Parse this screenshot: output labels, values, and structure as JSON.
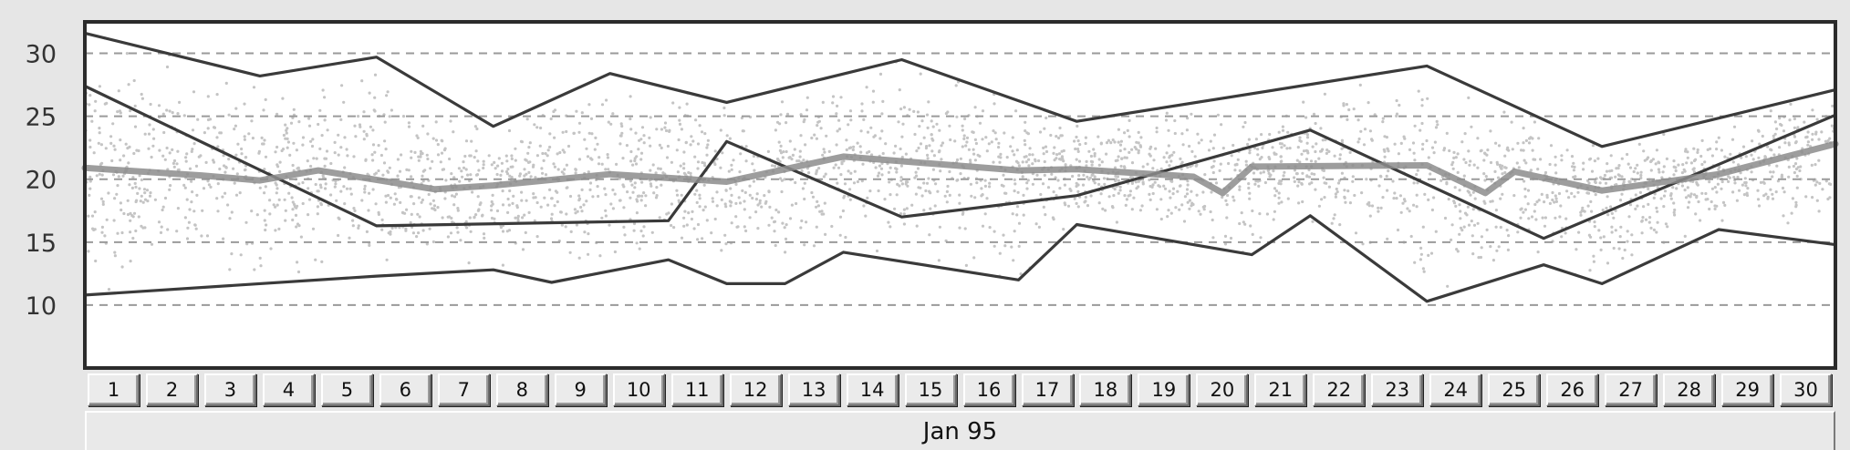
{
  "chart_data": {
    "type": "line",
    "x": [
      1,
      2,
      3,
      4,
      5,
      6,
      7,
      8,
      9,
      10,
      11,
      12,
      13,
      14,
      15,
      16,
      17,
      18,
      19,
      20,
      21,
      22,
      23,
      24,
      25,
      26,
      27,
      28,
      29,
      30
    ],
    "x_tick_labels": [
      "1",
      "2",
      "3",
      "4",
      "5",
      "6",
      "7",
      "8",
      "9",
      "10",
      "11",
      "12",
      "13",
      "14",
      "15",
      "16",
      "17",
      "18",
      "19",
      "20",
      "21",
      "22",
      "23",
      "24",
      "25",
      "26",
      "27",
      "28",
      "29",
      "30"
    ],
    "month_label": "Jan 95",
    "ylim": [
      5,
      32.5
    ],
    "y_ticks": [
      10,
      15,
      20,
      25,
      30
    ],
    "y_tick_labels": [
      "10",
      "15",
      "20",
      "25",
      "30"
    ],
    "grid": "horizontal dashed at y ticks",
    "background_scatter": "dense grey point cloud between the upper and lower envelope lines",
    "series": [
      {
        "role": "upper envelope",
        "color": "#3a3a3a",
        "points": [
          [
            0.5,
            31.6
          ],
          [
            3.5,
            28.2
          ],
          [
            5.5,
            29.7
          ],
          [
            7.5,
            24.2
          ],
          [
            9.5,
            28.4
          ],
          [
            11.5,
            26.1
          ],
          [
            14.5,
            29.5
          ],
          [
            17.5,
            24.6
          ],
          [
            23.5,
            29.0
          ],
          [
            26.5,
            22.6
          ],
          [
            30.5,
            27.1
          ]
        ]
      },
      {
        "role": "lower envelope",
        "color": "#3a3a3a",
        "points": [
          [
            0.5,
            10.8
          ],
          [
            5.5,
            12.3
          ],
          [
            7.5,
            12.8
          ],
          [
            8.5,
            11.8
          ],
          [
            10.5,
            13.6
          ],
          [
            11.5,
            11.7
          ],
          [
            12.5,
            11.7
          ],
          [
            13.5,
            14.2
          ],
          [
            16.5,
            12.0
          ],
          [
            17.5,
            16.4
          ],
          [
            20.5,
            14.0
          ],
          [
            21.5,
            17.1
          ],
          [
            23.5,
            10.3
          ],
          [
            25.5,
            13.2
          ],
          [
            26.5,
            11.7
          ],
          [
            28.5,
            16.0
          ],
          [
            30.5,
            14.8
          ]
        ]
      },
      {
        "role": "cross line A",
        "color": "#3a3a3a",
        "points": [
          [
            0.5,
            27.4
          ],
          [
            5.5,
            16.3
          ],
          [
            10.5,
            16.7
          ],
          [
            11.5,
            23.0
          ],
          [
            14.5,
            17.0
          ],
          [
            17.5,
            18.7
          ],
          [
            21.5,
            23.9
          ],
          [
            25.5,
            15.3
          ],
          [
            30.5,
            25.1
          ]
        ]
      },
      {
        "role": "mean",
        "color": "#8c8c8c",
        "points": [
          [
            0.5,
            20.9
          ],
          [
            2.5,
            20.3
          ],
          [
            3.5,
            19.9
          ],
          [
            4.5,
            20.7
          ],
          [
            6.5,
            19.2
          ],
          [
            7.5,
            19.5
          ],
          [
            9.5,
            20.4
          ],
          [
            11.5,
            19.8
          ],
          [
            13.5,
            21.8
          ],
          [
            16.5,
            20.7
          ],
          [
            17.5,
            20.8
          ],
          [
            19.5,
            20.2
          ],
          [
            20.0,
            18.9
          ],
          [
            20.5,
            21.0
          ],
          [
            23.5,
            21.1
          ],
          [
            24.5,
            18.9
          ],
          [
            25.0,
            20.6
          ],
          [
            26.5,
            19.1
          ],
          [
            28.5,
            20.4
          ],
          [
            30.5,
            22.8
          ]
        ]
      }
    ]
  }
}
